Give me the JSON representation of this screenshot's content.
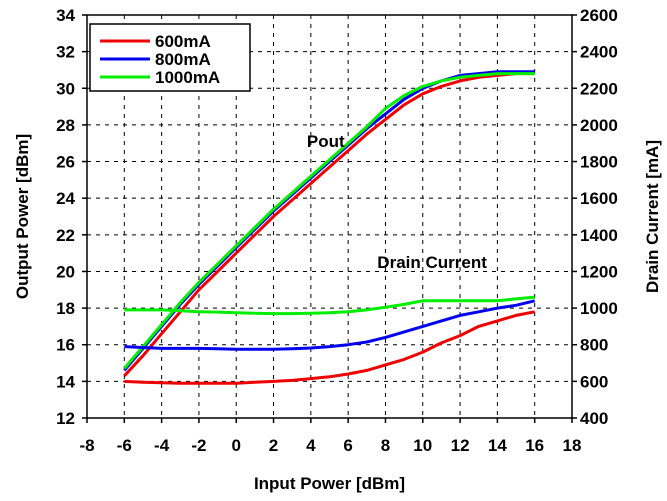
{
  "chart_data": {
    "type": "line",
    "xlabel": "Input Power [dBm]",
    "ylabel": "Output Power [dBm]",
    "y2label": "Drain Current [mA]",
    "xlim": [
      -8,
      18
    ],
    "ylim": [
      12,
      34
    ],
    "y2lim": [
      400,
      2600
    ],
    "x_ticks": [
      -8,
      -6,
      -4,
      -2,
      0,
      2,
      4,
      6,
      8,
      10,
      12,
      14,
      16,
      18
    ],
    "y_ticks": [
      12,
      14,
      16,
      18,
      20,
      22,
      24,
      26,
      28,
      30,
      32,
      34
    ],
    "y2_ticks": [
      400,
      600,
      800,
      1000,
      1200,
      1400,
      1600,
      1800,
      2000,
      2200,
      2400,
      2600
    ],
    "grid": "dashed",
    "legend_position": "top-left",
    "annotations": [
      {
        "text": "Pout",
        "x": 4.8,
        "y": 26.8
      },
      {
        "text": "Drain Current",
        "x": 10.5,
        "y": 20.2
      }
    ],
    "series": [
      {
        "name": "600mA",
        "color": "#ee0000",
        "axis": "left",
        "x": [
          -6,
          -5,
          -4,
          -3,
          -2,
          -1,
          0,
          1,
          2,
          3,
          4,
          5,
          6,
          7,
          8,
          9,
          10,
          11,
          12,
          13,
          14,
          15,
          16
        ],
        "values": [
          14.3,
          15.4,
          16.6,
          17.8,
          19.0,
          20.0,
          21.0,
          22.0,
          23.0,
          23.9,
          24.8,
          25.7,
          26.6,
          27.5,
          28.3,
          29.1,
          29.7,
          30.1,
          30.4,
          30.6,
          30.7,
          30.8,
          30.8
        ]
      },
      {
        "name": "800mA",
        "color": "#0000ee",
        "axis": "left",
        "x": [
          -6,
          -5,
          -4,
          -3,
          -2,
          -1,
          0,
          1,
          2,
          3,
          4,
          5,
          6,
          7,
          8,
          9,
          10,
          11,
          12,
          13,
          14,
          15,
          16
        ],
        "values": [
          14.6,
          15.8,
          17.0,
          18.2,
          19.3,
          20.3,
          21.3,
          22.3,
          23.3,
          24.2,
          25.1,
          26.0,
          26.9,
          27.8,
          28.6,
          29.4,
          30.0,
          30.4,
          30.7,
          30.8,
          30.9,
          30.9,
          30.9
        ]
      },
      {
        "name": "1000mA",
        "color": "#00ee00",
        "axis": "left",
        "x": [
          -6,
          -5,
          -4,
          -3,
          -2,
          -1,
          0,
          1,
          2,
          3,
          4,
          5,
          6,
          7,
          8,
          9,
          10,
          11,
          12,
          13,
          14,
          15,
          16
        ],
        "values": [
          14.7,
          15.9,
          17.1,
          18.3,
          19.4,
          20.4,
          21.4,
          22.4,
          23.4,
          24.3,
          25.2,
          26.1,
          27.0,
          27.9,
          28.9,
          29.6,
          30.1,
          30.4,
          30.6,
          30.7,
          30.8,
          30.8,
          30.8
        ]
      },
      {
        "name": "600mA",
        "color": "#ee0000",
        "axis": "right",
        "x": [
          -6,
          -5,
          -4,
          -3,
          -2,
          -1,
          0,
          1,
          2,
          3,
          4,
          5,
          6,
          7,
          8,
          9,
          10,
          11,
          12,
          13,
          14,
          15,
          16
        ],
        "values": [
          600,
          595,
          592,
          590,
          590,
          590,
          590,
          595,
          600,
          605,
          615,
          625,
          640,
          660,
          690,
          720,
          760,
          810,
          850,
          900,
          930,
          960,
          980
        ]
      },
      {
        "name": "800mA",
        "color": "#0000ee",
        "axis": "right",
        "x": [
          -6,
          -5,
          -4,
          -3,
          -2,
          -1,
          0,
          1,
          2,
          3,
          4,
          5,
          6,
          7,
          8,
          9,
          10,
          11,
          12,
          13,
          14,
          15,
          16
        ],
        "values": [
          790,
          785,
          780,
          780,
          780,
          778,
          775,
          775,
          775,
          778,
          782,
          790,
          800,
          815,
          840,
          870,
          900,
          930,
          960,
          980,
          1000,
          1015,
          1040
        ]
      },
      {
        "name": "1000mA",
        "color": "#00ee00",
        "axis": "right",
        "x": [
          -6,
          -5,
          -4,
          -3,
          -2,
          -1,
          0,
          1,
          2,
          3,
          4,
          5,
          6,
          7,
          8,
          9,
          10,
          11,
          12,
          13,
          14,
          15,
          16
        ],
        "values": [
          990,
          990,
          990,
          985,
          980,
          978,
          975,
          972,
          970,
          970,
          972,
          975,
          980,
          990,
          1005,
          1020,
          1040,
          1040,
          1040,
          1040,
          1040,
          1050,
          1060
        ]
      }
    ],
    "legend": [
      {
        "label": "600mA",
        "color": "#ee0000"
      },
      {
        "label": "800mA",
        "color": "#0000ee"
      },
      {
        "label": "1000mA",
        "color": "#00ee00"
      }
    ]
  }
}
